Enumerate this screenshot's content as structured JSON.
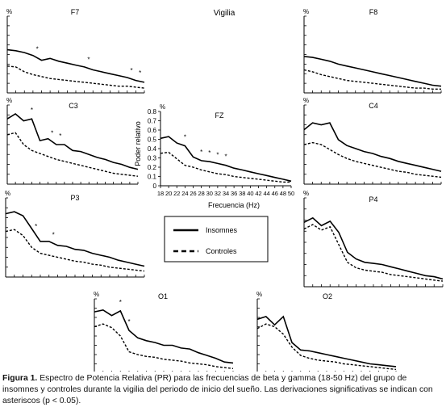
{
  "condition_label": "Vigilia",
  "legend": {
    "insomnes": "Insomnes",
    "controles": "Controles"
  },
  "caption": {
    "label": "Figura 1.",
    "text": "Espectro de Potencia Relativa (PR) para las frecuencias de beta y gamma (18-50 Hz) del grupo de insomnes y controles durante la vigilia del periodo de inicio del sueño. Las derivaciones significativas se indican con asteriscos (p < 0.05)."
  },
  "colors": {
    "insomnes": "#000000",
    "controles": "#000000",
    "axis": "#000000"
  },
  "chart_data": [
    {
      "type": "line",
      "title": "F7",
      "ylabel": "%",
      "x": [
        18,
        20,
        22,
        24,
        26,
        28,
        30,
        32,
        34,
        36,
        38,
        40,
        42,
        44,
        46,
        48,
        50
      ],
      "xlim": [
        18,
        50
      ],
      "ylim": [
        0,
        0.8
      ],
      "show_ticks": false,
      "series": [
        {
          "name": "Insomnes",
          "values": [
            0.45,
            0.44,
            0.42,
            0.39,
            0.34,
            0.36,
            0.33,
            0.31,
            0.29,
            0.27,
            0.24,
            0.22,
            0.2,
            0.18,
            0.16,
            0.13,
            0.11
          ]
        },
        {
          "name": "Controles",
          "values": [
            0.28,
            0.27,
            0.22,
            0.19,
            0.17,
            0.15,
            0.14,
            0.13,
            0.12,
            0.11,
            0.1,
            0.09,
            0.08,
            0.07,
            0.07,
            0.06,
            0.05
          ]
        }
      ],
      "asterisk_x": [
        25,
        37,
        47,
        49
      ]
    },
    {
      "type": "line",
      "title": "F8",
      "ylabel": "%",
      "x": [
        18,
        20,
        22,
        24,
        26,
        28,
        30,
        32,
        34,
        36,
        38,
        40,
        42,
        44,
        46,
        48,
        50
      ],
      "xlim": [
        18,
        50
      ],
      "ylim": [
        0,
        0.8
      ],
      "show_ticks": false,
      "series": [
        {
          "name": "Insomnes",
          "values": [
            0.38,
            0.37,
            0.35,
            0.33,
            0.3,
            0.28,
            0.26,
            0.24,
            0.22,
            0.2,
            0.18,
            0.16,
            0.14,
            0.12,
            0.1,
            0.08,
            0.07
          ]
        },
        {
          "name": "Controles",
          "values": [
            0.24,
            0.22,
            0.19,
            0.17,
            0.15,
            0.13,
            0.12,
            0.11,
            0.1,
            0.09,
            0.08,
            0.07,
            0.06,
            0.05,
            0.05,
            0.04,
            0.04
          ]
        }
      ],
      "asterisk_x": []
    },
    {
      "type": "line",
      "title": "C3",
      "ylabel": "%",
      "x": [
        18,
        20,
        22,
        24,
        26,
        28,
        30,
        32,
        34,
        36,
        38,
        40,
        42,
        44,
        46,
        48,
        50
      ],
      "xlim": [
        18,
        50
      ],
      "ylim": [
        0,
        0.8
      ],
      "show_ticks": false,
      "series": [
        {
          "name": "Insomnes",
          "values": [
            0.66,
            0.71,
            0.64,
            0.66,
            0.44,
            0.46,
            0.4,
            0.4,
            0.34,
            0.33,
            0.3,
            0.27,
            0.25,
            0.22,
            0.2,
            0.17,
            0.15
          ]
        },
        {
          "name": "Controles",
          "values": [
            0.5,
            0.52,
            0.4,
            0.34,
            0.31,
            0.28,
            0.25,
            0.23,
            0.21,
            0.19,
            0.17,
            0.15,
            0.13,
            0.11,
            0.1,
            0.09,
            0.08
          ]
        }
      ],
      "asterisk_x": [
        24,
        29,
        31
      ]
    },
    {
      "type": "line",
      "title": "FZ",
      "ylabel": "%",
      "axis_label_y": "Poder relativo",
      "xlabel": "Frecuencia (Hz)",
      "x": [
        18,
        20,
        22,
        24,
        26,
        28,
        30,
        32,
        34,
        36,
        38,
        40,
        42,
        44,
        46,
        48,
        50
      ],
      "xlim": [
        18,
        50
      ],
      "ylim": [
        0,
        0.8
      ],
      "show_ticks": true,
      "yticks": [
        0,
        0.1,
        0.2,
        0.3,
        0.4,
        0.5,
        0.6,
        0.7,
        0.8
      ],
      "ytick_labels": [
        "0",
        "0.1",
        "0.2",
        "0.3",
        "0.4",
        "0.5",
        "0.6",
        "0.7",
        "0.8"
      ],
      "xticks": [
        18,
        20,
        22,
        24,
        26,
        28,
        30,
        32,
        34,
        36,
        38,
        40,
        42,
        44,
        46,
        48,
        50
      ],
      "xtick_labels": [
        "18",
        "20",
        "22",
        "24",
        "26",
        "28",
        "30",
        "32",
        "34",
        "36",
        "38",
        "40",
        "42",
        "44",
        "46",
        "48",
        "50"
      ],
      "series": [
        {
          "name": "Insomnes",
          "values": [
            0.51,
            0.53,
            0.46,
            0.43,
            0.31,
            0.27,
            0.26,
            0.24,
            0.22,
            0.19,
            0.17,
            0.15,
            0.13,
            0.11,
            0.09,
            0.07,
            0.05
          ]
        },
        {
          "name": "Controles",
          "values": [
            0.35,
            0.36,
            0.29,
            0.22,
            0.2,
            0.17,
            0.15,
            0.13,
            0.12,
            0.1,
            0.09,
            0.08,
            0.07,
            0.06,
            0.05,
            0.04,
            0.04
          ]
        }
      ],
      "asterisk_x": [
        24,
        28,
        30,
        32,
        34
      ]
    },
    {
      "type": "line",
      "title": "C4",
      "ylabel": "%",
      "x": [
        18,
        20,
        22,
        24,
        26,
        28,
        30,
        32,
        34,
        36,
        38,
        40,
        42,
        44,
        46,
        48,
        50
      ],
      "xlim": [
        18,
        50
      ],
      "ylim": [
        0,
        0.8
      ],
      "show_ticks": false,
      "series": [
        {
          "name": "Insomnes",
          "values": [
            0.55,
            0.62,
            0.6,
            0.62,
            0.45,
            0.39,
            0.36,
            0.33,
            0.31,
            0.28,
            0.26,
            0.23,
            0.21,
            0.19,
            0.17,
            0.15,
            0.13
          ]
        },
        {
          "name": "Controles",
          "values": [
            0.4,
            0.42,
            0.4,
            0.35,
            0.3,
            0.26,
            0.23,
            0.21,
            0.19,
            0.17,
            0.15,
            0.13,
            0.12,
            0.1,
            0.09,
            0.08,
            0.07
          ]
        }
      ],
      "asterisk_x": []
    },
    {
      "type": "line",
      "title": "P3",
      "ylabel": "%",
      "x": [
        18,
        20,
        22,
        24,
        26,
        28,
        30,
        32,
        34,
        36,
        38,
        40,
        42,
        44,
        46,
        48,
        50
      ],
      "xlim": [
        18,
        50
      ],
      "ylim": [
        0,
        0.8
      ],
      "show_ticks": false,
      "series": [
        {
          "name": "Insomnes",
          "values": [
            0.64,
            0.66,
            0.62,
            0.49,
            0.36,
            0.36,
            0.32,
            0.31,
            0.28,
            0.27,
            0.24,
            0.22,
            0.2,
            0.17,
            0.15,
            0.13,
            0.11
          ]
        },
        {
          "name": "Controles",
          "values": [
            0.46,
            0.48,
            0.42,
            0.3,
            0.24,
            0.22,
            0.2,
            0.18,
            0.16,
            0.15,
            0.13,
            0.12,
            0.1,
            0.09,
            0.08,
            0.07,
            0.06
          ]
        }
      ],
      "asterisk_x": [
        25,
        29
      ]
    },
    {
      "type": "line",
      "title": "P4",
      "ylabel": "%",
      "x": [
        18,
        20,
        22,
        24,
        26,
        28,
        30,
        32,
        34,
        36,
        38,
        40,
        42,
        44,
        46,
        48,
        50
      ],
      "xlim": [
        18,
        50
      ],
      "ylim": [
        0,
        0.8
      ],
      "show_ticks": false,
      "series": [
        {
          "name": "Insomnes",
          "values": [
            0.58,
            0.62,
            0.55,
            0.59,
            0.49,
            0.31,
            0.25,
            0.22,
            0.21,
            0.2,
            0.18,
            0.16,
            0.14,
            0.12,
            0.1,
            0.09,
            0.07
          ]
        },
        {
          "name": "Controles",
          "values": [
            0.52,
            0.56,
            0.51,
            0.54,
            0.38,
            0.22,
            0.17,
            0.15,
            0.14,
            0.13,
            0.11,
            0.1,
            0.09,
            0.08,
            0.07,
            0.06,
            0.05
          ]
        }
      ],
      "asterisk_x": []
    },
    {
      "type": "line",
      "title": "O1",
      "ylabel": "%",
      "x": [
        18,
        20,
        22,
        24,
        26,
        28,
        30,
        32,
        34,
        36,
        38,
        40,
        42,
        44,
        46,
        48,
        50
      ],
      "xlim": [
        18,
        50
      ],
      "ylim": [
        0,
        0.8
      ],
      "show_ticks": false,
      "series": [
        {
          "name": "Insomnes",
          "values": [
            0.66,
            0.68,
            0.62,
            0.67,
            0.46,
            0.38,
            0.35,
            0.33,
            0.3,
            0.3,
            0.27,
            0.26,
            0.22,
            0.19,
            0.16,
            0.12,
            0.11
          ]
        },
        {
          "name": "Controles",
          "values": [
            0.5,
            0.53,
            0.49,
            0.4,
            0.23,
            0.2,
            0.18,
            0.17,
            0.15,
            0.14,
            0.13,
            0.11,
            0.1,
            0.09,
            0.07,
            0.06,
            0.05
          ]
        }
      ],
      "asterisk_x": [
        24,
        26
      ]
    },
    {
      "type": "line",
      "title": "O2",
      "ylabel": "%",
      "x": [
        18,
        20,
        22,
        24,
        26,
        28,
        30,
        32,
        34,
        36,
        38,
        40,
        42,
        44,
        46,
        48,
        50
      ],
      "xlim": [
        18,
        50
      ],
      "ylim": [
        0,
        0.8
      ],
      "show_ticks": false,
      "series": [
        {
          "name": "Insomnes",
          "values": [
            0.58,
            0.61,
            0.52,
            0.61,
            0.33,
            0.25,
            0.24,
            0.22,
            0.2,
            0.18,
            0.16,
            0.14,
            0.12,
            0.1,
            0.09,
            0.08,
            0.07
          ]
        },
        {
          "name": "Controles",
          "values": [
            0.48,
            0.53,
            0.5,
            0.42,
            0.28,
            0.19,
            0.16,
            0.14,
            0.13,
            0.12,
            0.1,
            0.09,
            0.08,
            0.07,
            0.06,
            0.05,
            0.04
          ]
        }
      ],
      "asterisk_x": []
    }
  ]
}
